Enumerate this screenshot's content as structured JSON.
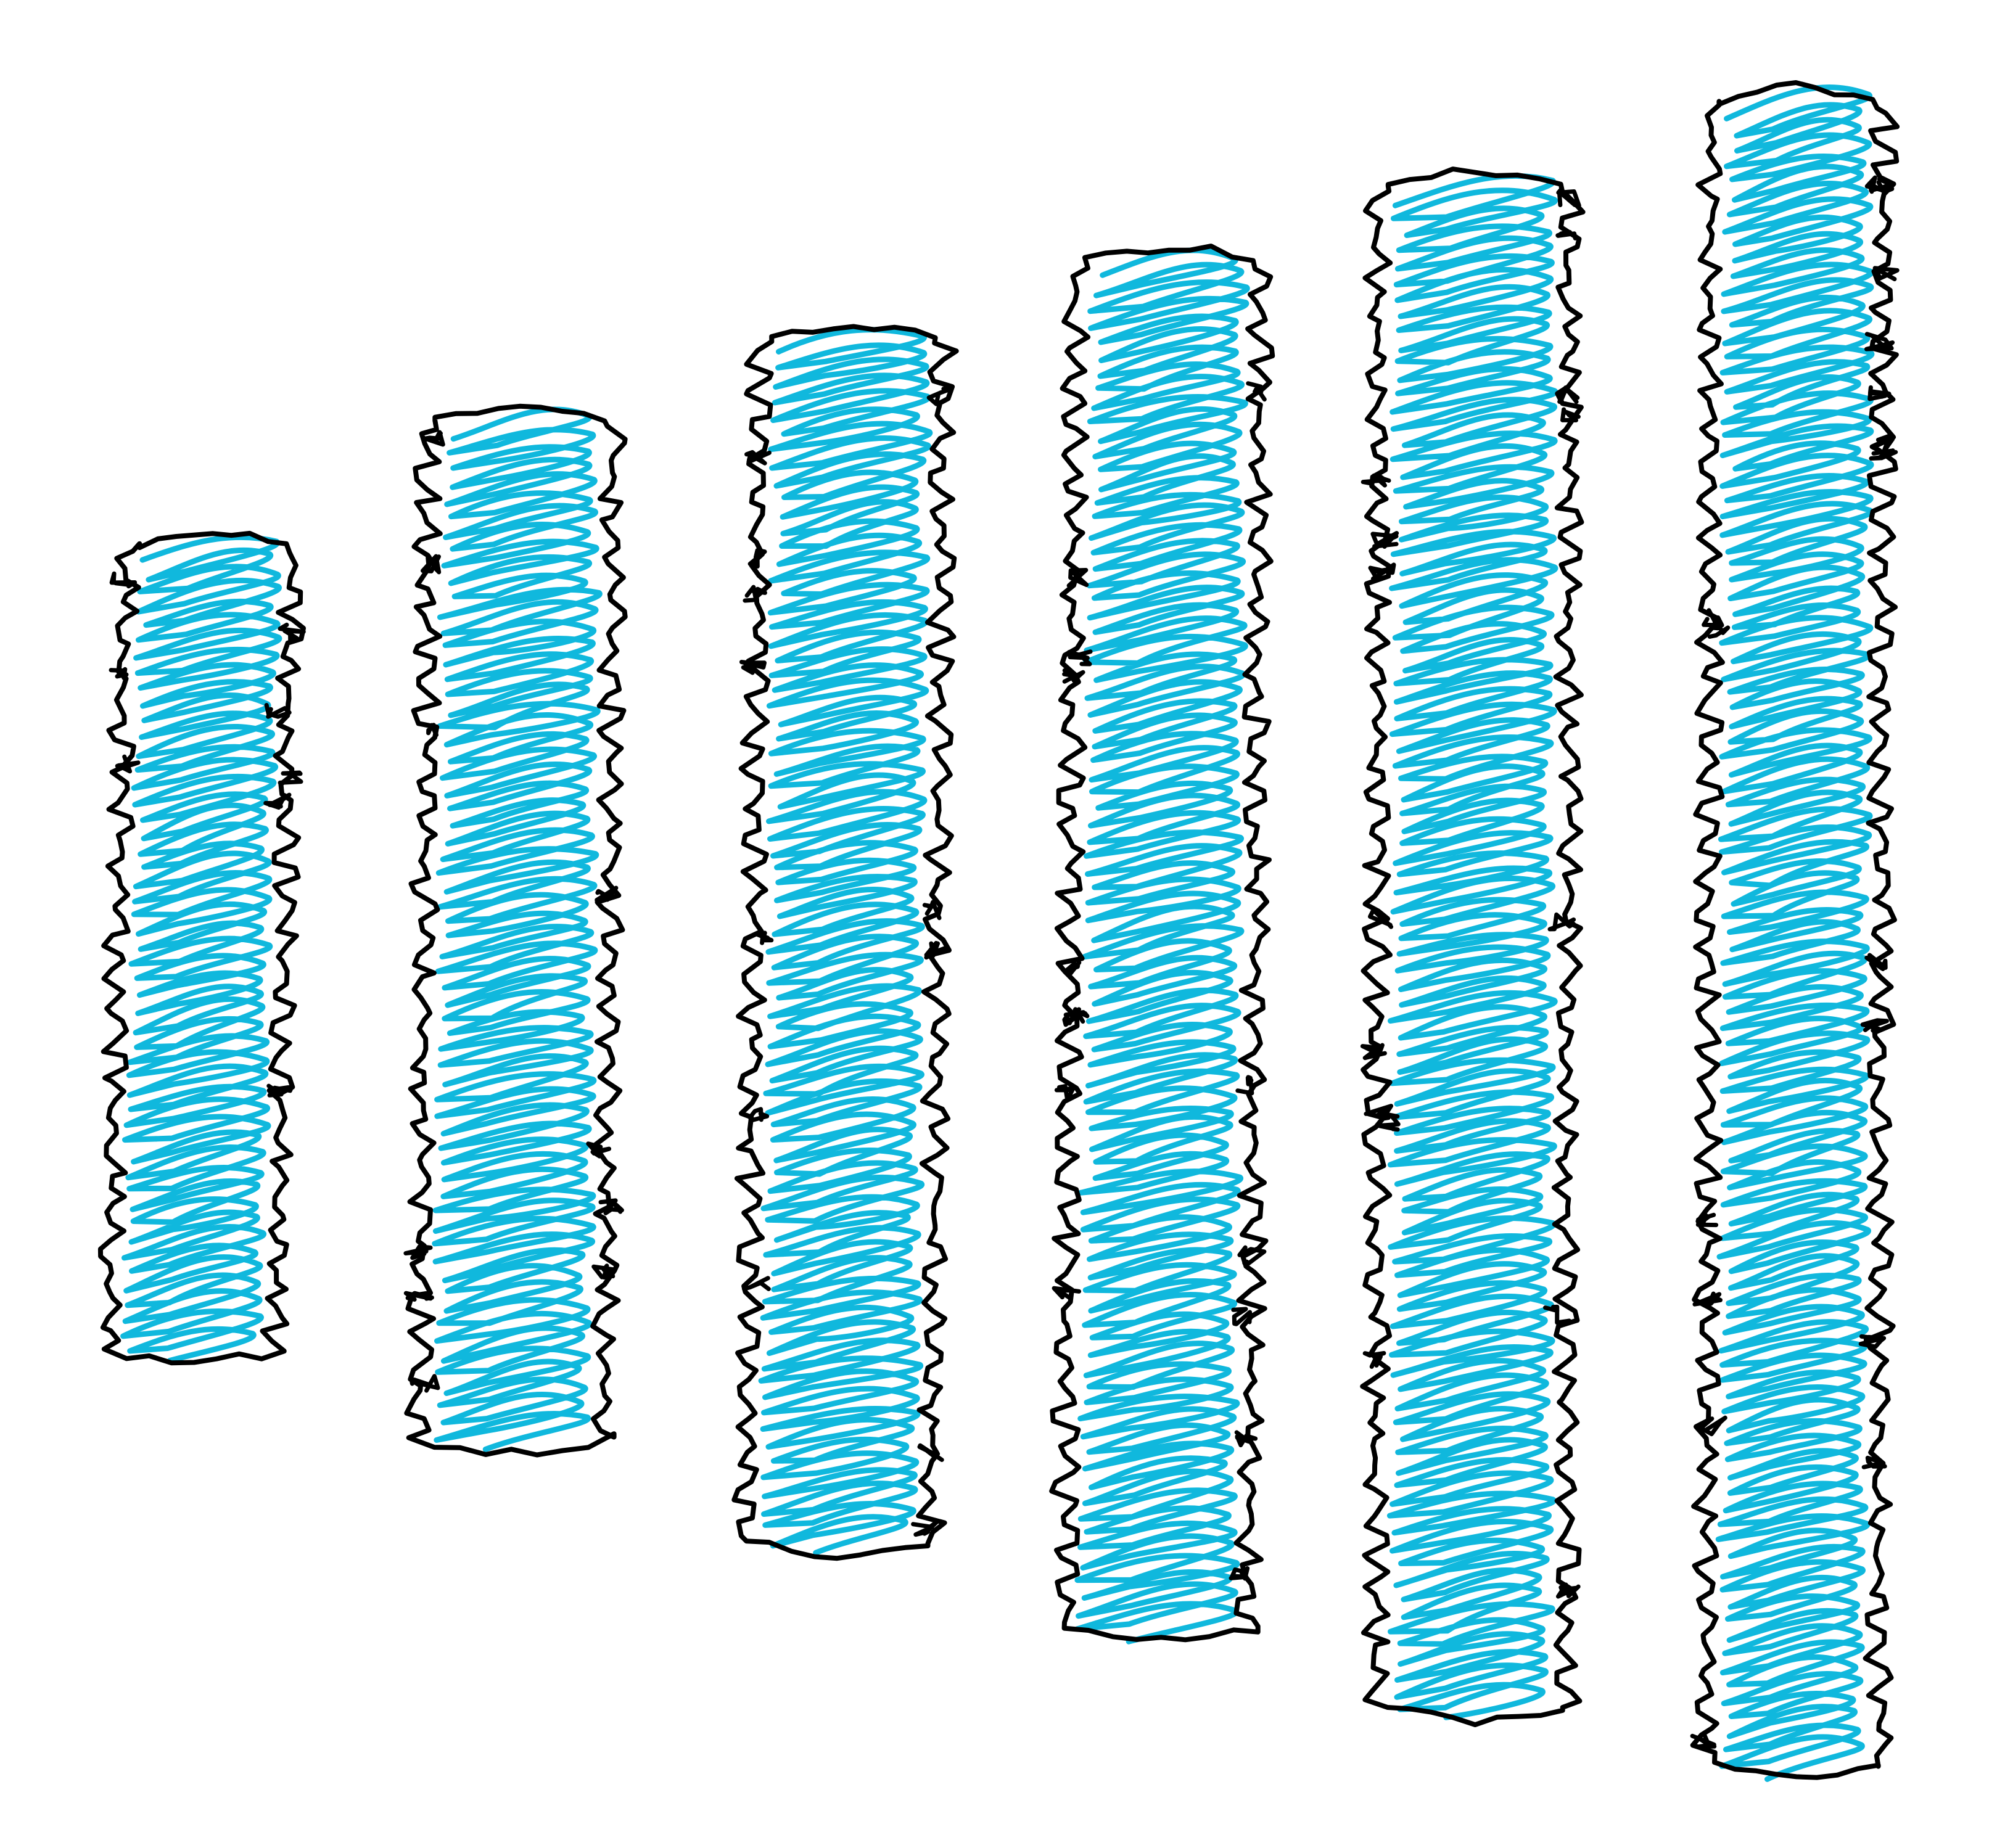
{
  "scene": {
    "background_color": "#ffffff",
    "ink_color": "#000000",
    "fill_color": "#10b8dd",
    "strands": [
      {
        "label": ""
      },
      {
        "label": ""
      },
      {
        "label": ""
      },
      {
        "label": ""
      },
      {
        "label": ""
      },
      {
        "label": ""
      }
    ]
  }
}
